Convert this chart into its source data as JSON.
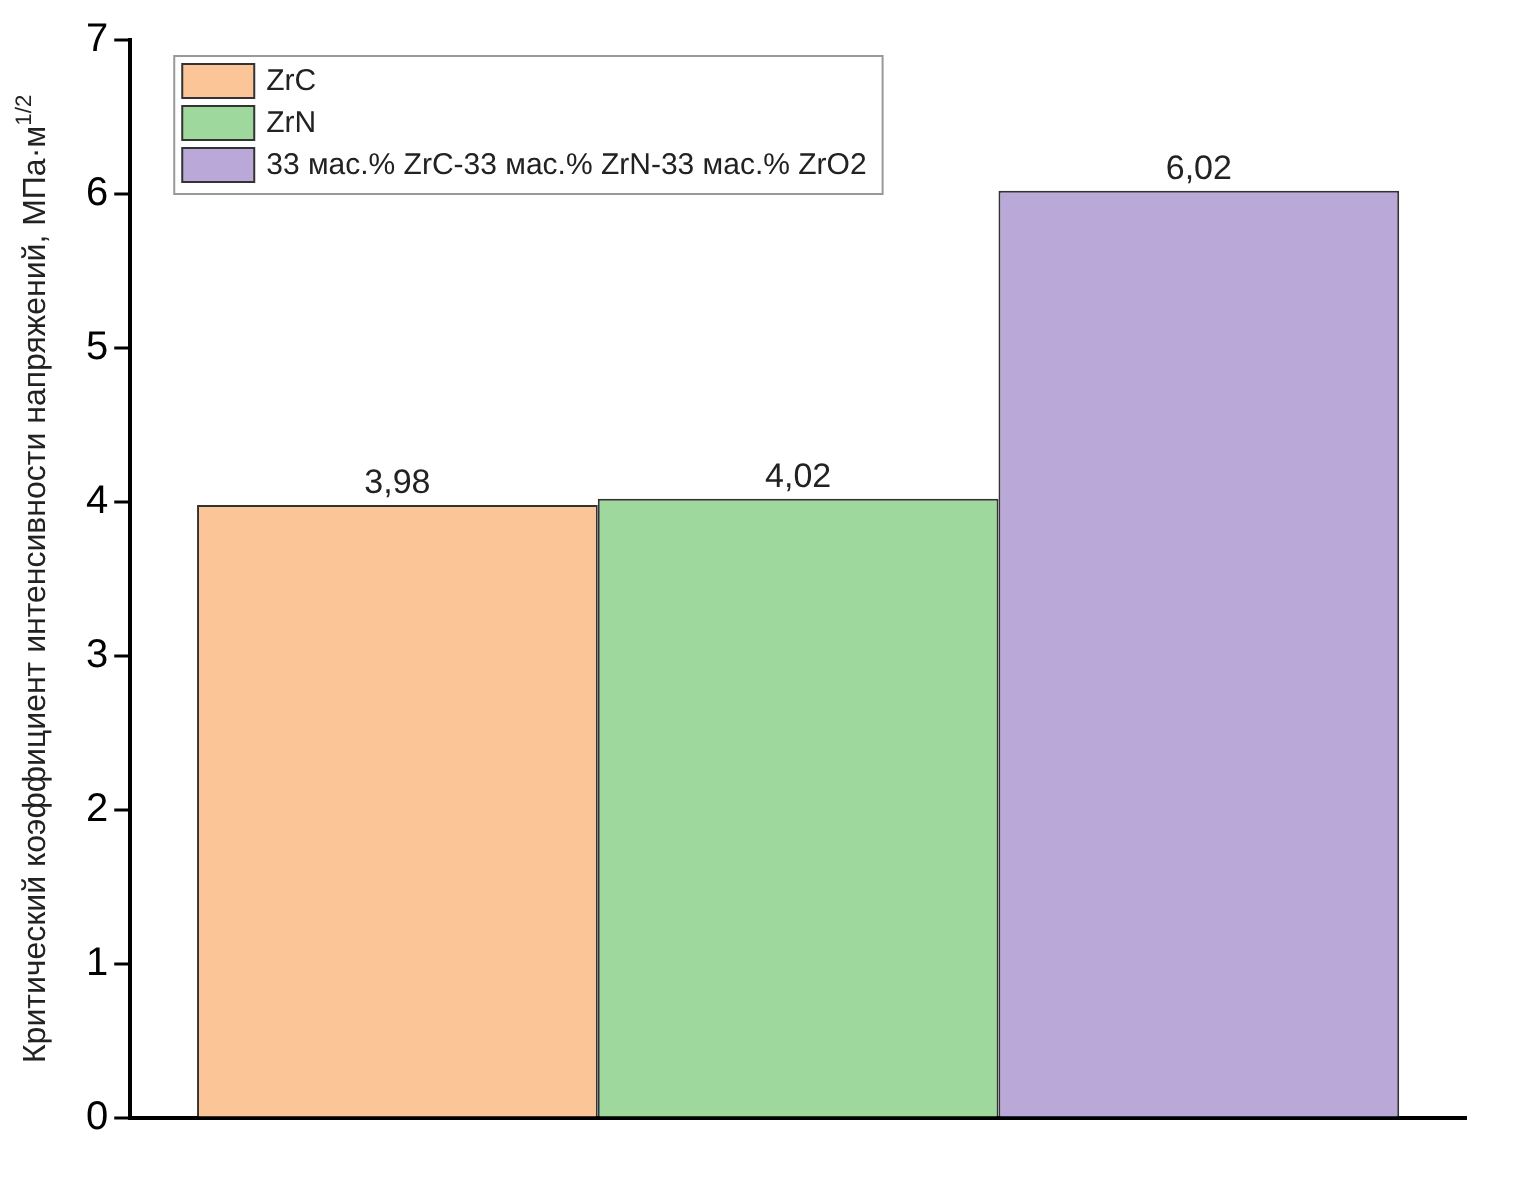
{
  "chart_data": {
    "type": "bar",
    "ylabel": "Критический коэффициент интенсивности напряжений, МПа·м$^{1/2}$",
    "categories": [
      null
    ],
    "series": [
      {
        "name": "ZrC",
        "color": "#fcc597",
        "values": [
          3.98
        ],
        "value_labels": [
          "3,98"
        ]
      },
      {
        "name": "ZrN",
        "color": "#9ed89c",
        "values": [
          4.02
        ],
        "value_labels": [
          "4,02"
        ]
      },
      {
        "name": "33 мас.% ZrC-33 мас.% ZrN-33 мас.% ZrO2",
        "color": "#b9a8d8",
        "values": [
          6.02
        ],
        "value_labels": [
          "6,02"
        ]
      }
    ],
    "ylim": [
      0,
      7
    ],
    "yticks": [
      0,
      1,
      2,
      3,
      4,
      5,
      6,
      7
    ],
    "grid": false,
    "legend": "top left"
  }
}
